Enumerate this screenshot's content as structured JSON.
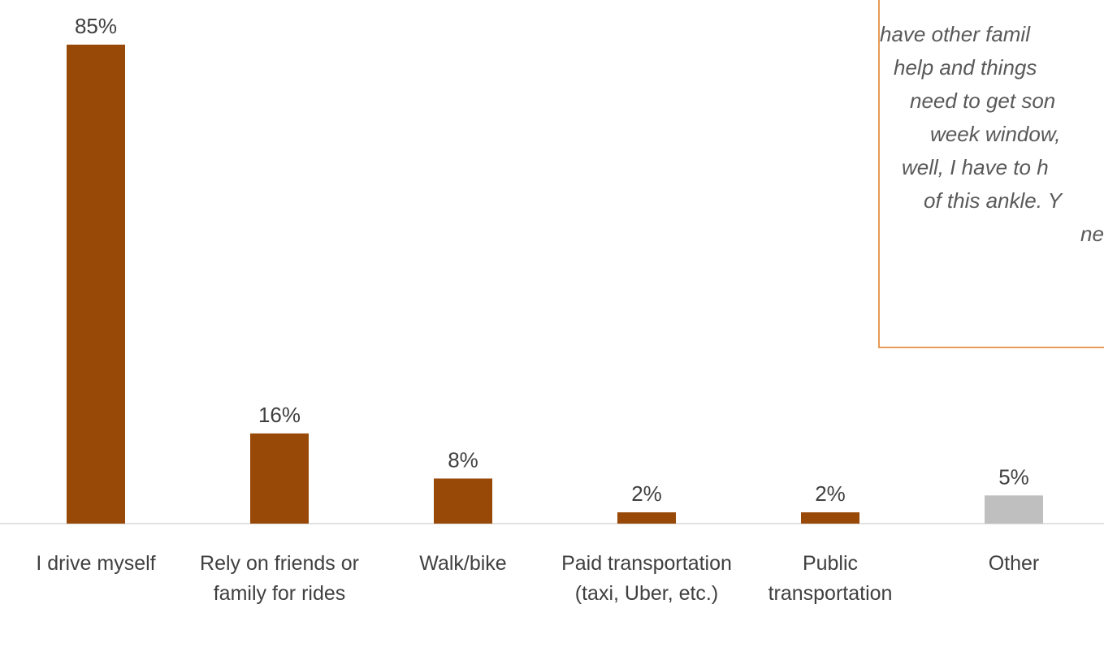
{
  "chart_data": {
    "type": "bar",
    "categories": [
      "I drive myself",
      "Rely on friends or family for rides",
      "Walk/bike",
      "Paid transportation (taxi, Uber, etc.)",
      "Public transportation",
      "Other"
    ],
    "values": [
      85,
      16,
      8,
      2,
      2,
      5
    ],
    "value_labels": [
      "85%",
      "16%",
      "8%",
      "2%",
      "2%",
      "5%"
    ],
    "colors": [
      "#984807",
      "#984807",
      "#984807",
      "#984807",
      "#984807",
      "#bfbfbf"
    ]
  },
  "quote": {
    "lines": [
      "have other famil",
      "help and things",
      "need to get son",
      "week window,",
      "well, I have to h",
      "of this ankle. Y",
      "ne"
    ]
  }
}
